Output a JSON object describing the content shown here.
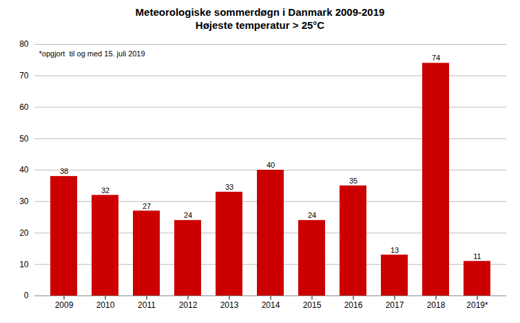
{
  "chart_data": {
    "type": "bar",
    "title": "Meteorologiske sommerdøgn i Danmark 2009-2019",
    "subtitle": "Højeste temperatur > 25°C",
    "categories": [
      "2009",
      "2010",
      "2011",
      "2012",
      "2013",
      "2014",
      "2015",
      "2016",
      "2017",
      "2018",
      "2019*"
    ],
    "values": [
      38,
      32,
      27,
      24,
      33,
      40,
      24,
      35,
      13,
      74,
      11
    ],
    "color": "#cc0000",
    "ylim": [
      0,
      80
    ],
    "yticks": [
      0,
      10,
      20,
      30,
      40,
      50,
      60,
      70,
      80
    ],
    "grid": true,
    "data_labels": true,
    "annotation": "*opgjort  til og med 15. juli 2019"
  }
}
